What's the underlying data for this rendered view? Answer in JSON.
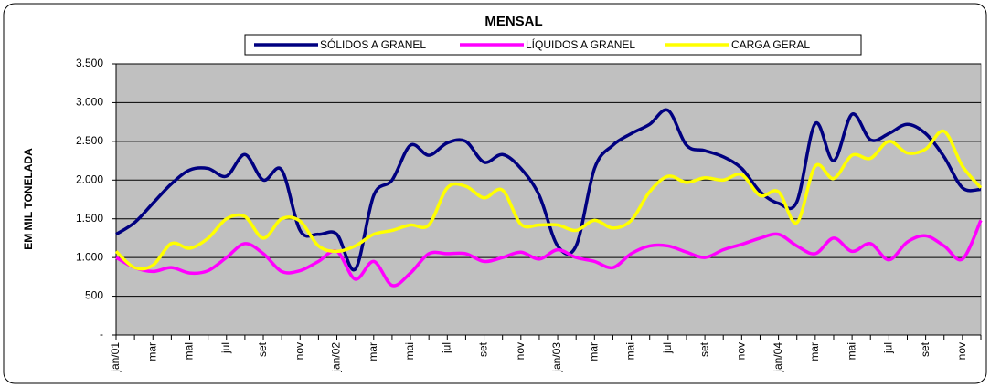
{
  "chart_data": {
    "type": "line",
    "title": "MENSAL",
    "y_label": "EM MIL TONELADA",
    "categories": [
      "jan/01",
      null,
      "mar",
      null,
      "mai",
      null,
      "jul",
      null,
      "set",
      null,
      "nov",
      null,
      "jan/02",
      null,
      "mar",
      null,
      "mai",
      null,
      "jul",
      null,
      "set",
      null,
      "nov",
      null,
      "jan/03",
      null,
      "mar",
      null,
      "mai",
      null,
      "jul",
      null,
      "set",
      null,
      "nov",
      null,
      "jan/04",
      null,
      "mar",
      null,
      "mai",
      null,
      "jul",
      null,
      "set",
      null,
      "nov",
      null
    ],
    "series": [
      {
        "name": "SÓLIDOS A GRANEL",
        "color": "#000080",
        "values": [
          1300,
          1450,
          1700,
          1950,
          2130,
          2150,
          2050,
          2330,
          2000,
          2130,
          1350,
          1300,
          1300,
          850,
          1800,
          2000,
          2450,
          2320,
          2480,
          2500,
          2230,
          2330,
          2150,
          1800,
          1150,
          1150,
          2150,
          2450,
          2600,
          2720,
          2900,
          2450,
          2380,
          2300,
          2150,
          1850,
          1700,
          1720,
          2730,
          2250,
          2850,
          2520,
          2600,
          2720,
          2600,
          2300,
          1900,
          1880
        ]
      },
      {
        "name": "LÍQUIDOS A GRANEL",
        "color": "#ff00ff",
        "values": [
          1000,
          870,
          820,
          870,
          800,
          830,
          1000,
          1180,
          1050,
          820,
          830,
          950,
          1080,
          720,
          950,
          640,
          800,
          1050,
          1050,
          1050,
          950,
          1000,
          1070,
          980,
          1100,
          1000,
          950,
          870,
          1050,
          1150,
          1150,
          1070,
          1000,
          1100,
          1170,
          1250,
          1300,
          1150,
          1050,
          1250,
          1080,
          1180,
          970,
          1200,
          1280,
          1150,
          980,
          1480
        ]
      },
      {
        "name": "CARGA GERAL",
        "color": "#ffff00",
        "values": [
          1080,
          870,
          900,
          1180,
          1120,
          1250,
          1500,
          1530,
          1250,
          1500,
          1470,
          1150,
          1080,
          1150,
          1300,
          1350,
          1420,
          1420,
          1900,
          1920,
          1770,
          1870,
          1430,
          1420,
          1420,
          1350,
          1480,
          1380,
          1480,
          1850,
          2050,
          1970,
          2030,
          2000,
          2070,
          1800,
          1850,
          1450,
          2180,
          2020,
          2320,
          2280,
          2500,
          2350,
          2400,
          2630,
          2180,
          1900
        ]
      }
    ],
    "ylim": [
      0,
      3500
    ],
    "yticks": [
      {
        "value": 0,
        "label": "-"
      },
      500,
      {
        "value": 1000,
        "label": "1.000"
      },
      {
        "value": 1500,
        "label": "1.500"
      },
      {
        "value": 2000,
        "label": "2.000"
      },
      {
        "value": 2500,
        "label": "2.500"
      },
      {
        "value": 3000,
        "label": "3.000"
      },
      {
        "value": 3500,
        "label": "3.500"
      }
    ],
    "grid": true,
    "plot_background": "#c0c0c0",
    "legend": "top"
  }
}
